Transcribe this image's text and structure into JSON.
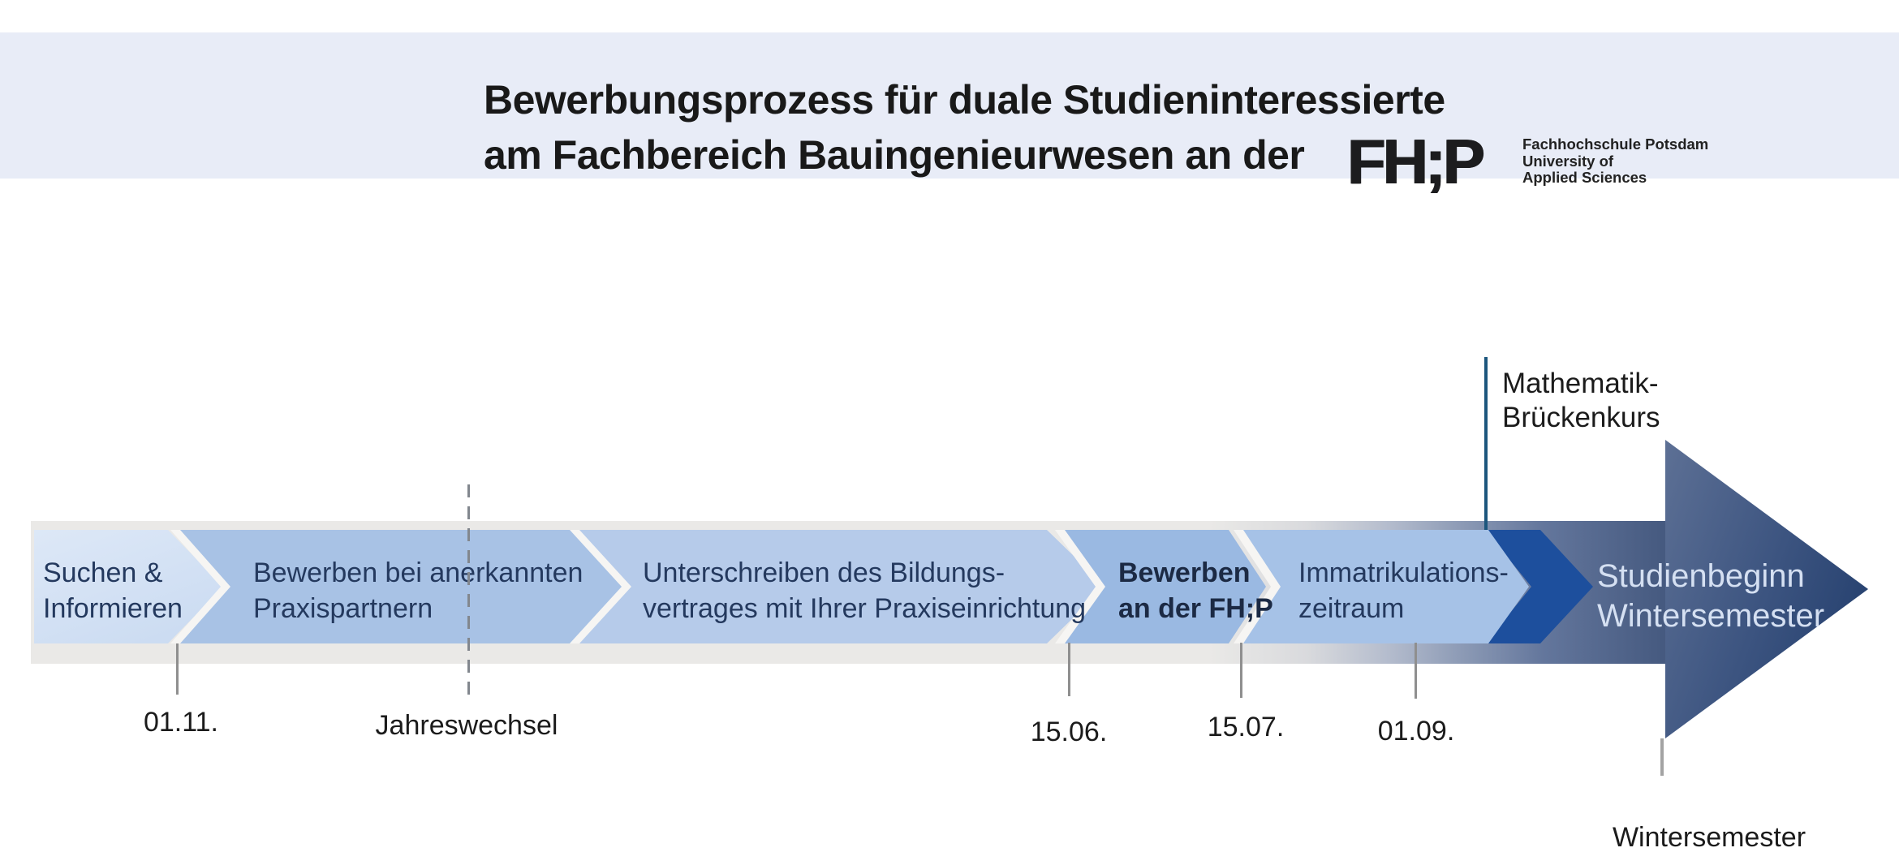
{
  "header": {
    "title_line1": "Bewerbungsprozess für duale Studieninteressierte",
    "title_line2": "am Fachbereich Bauingenieurwesen an der",
    "logo": {
      "wordmark": "FH;P",
      "name_line1": "Fachhochschule Potsdam",
      "name_line2": "University of",
      "name_line3": "Applied Sciences"
    }
  },
  "process": {
    "steps": [
      {
        "line1": "Suchen &",
        "line2": "Informieren",
        "color": "#cfdff3"
      },
      {
        "line1": "Bewerben bei anerkannten",
        "line2": "Praxispartnern",
        "color": "#a8c2e5"
      },
      {
        "line1": "Unterschreiben des Bildungs-",
        "line2": "vertrages mit Ihrer Praxiseinrichtung",
        "color": "#b6cbea"
      },
      {
        "line1": "Bewerben",
        "line2": "an der FH;P",
        "color": "#9ab9e2",
        "emphasis": true
      },
      {
        "line1": "Immatrikulations-",
        "line2": "zeitraum",
        "color": "#a6c2e7"
      }
    ],
    "connector_color": "#1d509d",
    "final_arrow": {
      "line1": "Studienbeginn",
      "line2": "Wintersemester",
      "text_color": "#d5e0f2",
      "dark_color": "#1e3a69"
    }
  },
  "milestones": [
    {
      "label": "01.11."
    },
    {
      "label": "Jahreswechsel",
      "line_style": "dashed"
    },
    {
      "label": "15.06."
    },
    {
      "label": "15.07."
    },
    {
      "label": "01.09."
    }
  ],
  "annotations": {
    "math_course_line1": "Mathematik-",
    "math_course_line2": "Brückenkurs",
    "winter_semester": "Wintersemester"
  },
  "colors": {
    "header_band": "#e8ecf7",
    "band_gray": "#eae9e7",
    "accent_line": "#1c567d",
    "step_text": "#24395e"
  }
}
